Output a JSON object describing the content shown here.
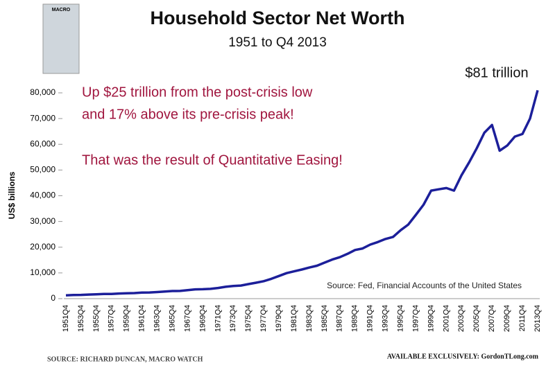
{
  "chart_data": {
    "type": "line",
    "title": "Household Sector Net Worth",
    "subtitle": "1951 to Q4 2013",
    "logo": "MACRO",
    "y_label": "US$ billions",
    "annotations": [
      "$81 trillion",
      "Up $25 trillion from the post-crisis low",
      "and 17% above its pre-crisis peak!",
      "That was the result of Quantitative Easing!"
    ],
    "source": "Source: Fed, Financial Accounts of the United States",
    "footer_left": "SOURCE: RICHARD DUNCAN, MACRO WATCH",
    "footer_right": "AVAILABLE EXCLUSIVELY: GordonTLong.com",
    "categories": [
      "1951Q4",
      null,
      "1953Q4",
      null,
      "1955Q4",
      null,
      "1957Q4",
      null,
      "1959Q4",
      null,
      "1961Q4",
      null,
      "1963Q4",
      null,
      "1965Q4",
      null,
      "1967Q4",
      null,
      "1969Q4",
      null,
      "1971Q4",
      null,
      "1973Q4",
      null,
      "1975Q4",
      null,
      "1977Q4",
      null,
      "1979Q4",
      null,
      "1981Q4",
      null,
      "1983Q4",
      null,
      "1985Q4",
      null,
      "1987Q4",
      null,
      "1989Q4",
      null,
      "1991Q4",
      null,
      "1993Q4",
      null,
      "1995Q4",
      null,
      "1997Q4",
      null,
      "1999Q4",
      null,
      "2001Q4",
      null,
      "2003Q4",
      null,
      "2005Q4",
      null,
      "2007Q4",
      null,
      "2009Q4",
      null,
      "2011Q4",
      null,
      "2013Q4"
    ],
    "series": [
      {
        "name": "Household net worth",
        "color": "#1c1f9a",
        "values": [
          1300,
          1400,
          1450,
          1600,
          1700,
          1800,
          1800,
          2000,
          2100,
          2150,
          2350,
          2400,
          2550,
          2750,
          2950,
          3000,
          3300,
          3600,
          3650,
          3800,
          4150,
          4600,
          4900,
          5100,
          5650,
          6200,
          6800,
          7700,
          8800,
          9900,
          10600,
          11300,
          12100,
          12800,
          14000,
          15200,
          16100,
          17400,
          18900,
          19500,
          21000,
          22000,
          23200,
          24000,
          26600,
          28800,
          32600,
          36500,
          42000,
          42500,
          43000,
          42000,
          48000,
          53000,
          58500,
          64500,
          67500,
          57500,
          59500,
          63000,
          64000,
          70000,
          81000
        ]
      }
    ],
    "ylim": [
      0,
      80000
    ],
    "yticks": [
      0,
      {
        "value": 10000,
        "label": "10,000"
      },
      {
        "value": 20000,
        "label": "20,000"
      },
      {
        "value": 30000,
        "label": "30,000"
      },
      {
        "value": 40000,
        "label": "40,000"
      },
      {
        "value": 50000,
        "label": "50,000"
      },
      {
        "value": 60000,
        "label": "60,000"
      },
      {
        "value": 70000,
        "label": "70,000"
      },
      {
        "value": 80000,
        "label": "80,000"
      }
    ],
    "grid": false
  }
}
